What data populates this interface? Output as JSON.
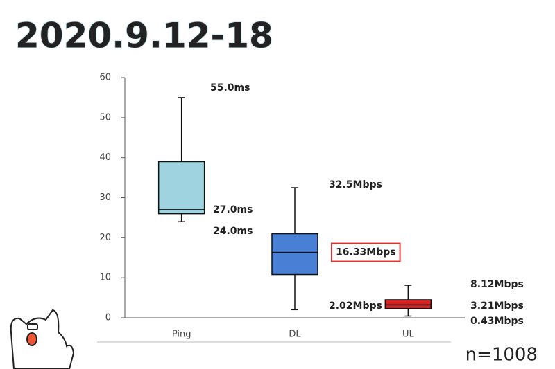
{
  "chart_data": {
    "type": "box",
    "title": "2020.9.12-18",
    "annotation": "n=1008",
    "categories": [
      "Ping",
      "DL",
      "UL"
    ],
    "boxes": [
      {
        "min": 24,
        "q1": 26,
        "median": 27,
        "q3": 39,
        "max": 55,
        "color": "#9fd3e0",
        "value_labels": {
          "max": "55.0ms",
          "median": "27.0ms",
          "min": "24.0ms"
        }
      },
      {
        "min": 2.02,
        "q1": 10.8,
        "median": 16.33,
        "q3": 21,
        "max": 32.5,
        "color": "#4a7fd6",
        "value_labels": {
          "max": "32.5Mbps",
          "median": "16.33Mbps",
          "min": "2.02Mbps"
        },
        "highlight": "median",
        "highlight_color": "#e03030"
      },
      {
        "min": 0.43,
        "q1": 2.3,
        "median": 3.21,
        "q3": 4.5,
        "max": 8.12,
        "color": "#d92121",
        "value_labels": {
          "max": "8.12Mbps",
          "median": "3.21Mbps",
          "min": "0.43Mbps"
        }
      }
    ],
    "ylim": [
      0,
      60
    ],
    "yticks": [
      0,
      10,
      20,
      30,
      40,
      50,
      60
    ]
  }
}
